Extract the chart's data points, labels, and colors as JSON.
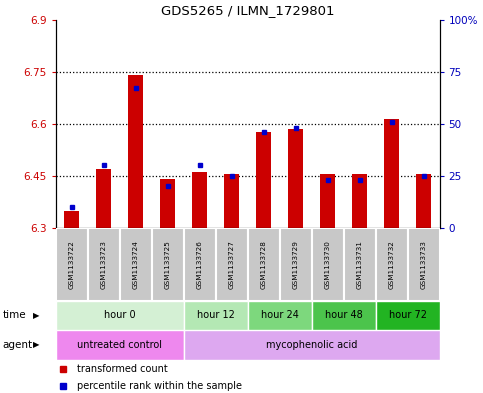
{
  "title": "GDS5265 / ILMN_1729801",
  "samples": [
    "GSM1133722",
    "GSM1133723",
    "GSM1133724",
    "GSM1133725",
    "GSM1133726",
    "GSM1133727",
    "GSM1133728",
    "GSM1133729",
    "GSM1133730",
    "GSM1133731",
    "GSM1133732",
    "GSM1133733"
  ],
  "transformed_count": [
    6.35,
    6.47,
    6.74,
    6.44,
    6.46,
    6.455,
    6.575,
    6.585,
    6.455,
    6.455,
    6.615,
    6.455
  ],
  "percentile_rank": [
    10,
    30,
    67,
    20,
    30,
    25,
    46,
    48,
    23,
    23,
    51,
    25
  ],
  "ylim_left": [
    6.3,
    6.9
  ],
  "ylim_right": [
    0,
    100
  ],
  "yticks_left": [
    6.3,
    6.45,
    6.6,
    6.75,
    6.9
  ],
  "yticks_right": [
    0,
    25,
    50,
    75,
    100
  ],
  "ytick_labels_right": [
    "0",
    "25",
    "50",
    "75",
    "100%"
  ],
  "hgrid_lines": [
    6.45,
    6.6,
    6.75
  ],
  "time_groups": [
    {
      "label": "hour 0",
      "start": 0,
      "end": 3,
      "color": "#d4f0d4"
    },
    {
      "label": "hour 12",
      "start": 4,
      "end": 5,
      "color": "#b4e8b4"
    },
    {
      "label": "hour 24",
      "start": 6,
      "end": 7,
      "color": "#7dd87d"
    },
    {
      "label": "hour 48",
      "start": 8,
      "end": 9,
      "color": "#4cc44c"
    },
    {
      "label": "hour 72",
      "start": 10,
      "end": 11,
      "color": "#22b422"
    }
  ],
  "agent_groups": [
    {
      "label": "untreated control",
      "start": 0,
      "end": 3,
      "color": "#ee88ee"
    },
    {
      "label": "mycophenolic acid",
      "start": 4,
      "end": 11,
      "color": "#dda8f0"
    }
  ],
  "bar_color": "#cc0000",
  "dot_color": "#0000cc",
  "left_tick_color": "#cc0000",
  "right_tick_color": "#0000bb",
  "sample_box_color": "#c8c8c8",
  "bar_width": 0.45
}
